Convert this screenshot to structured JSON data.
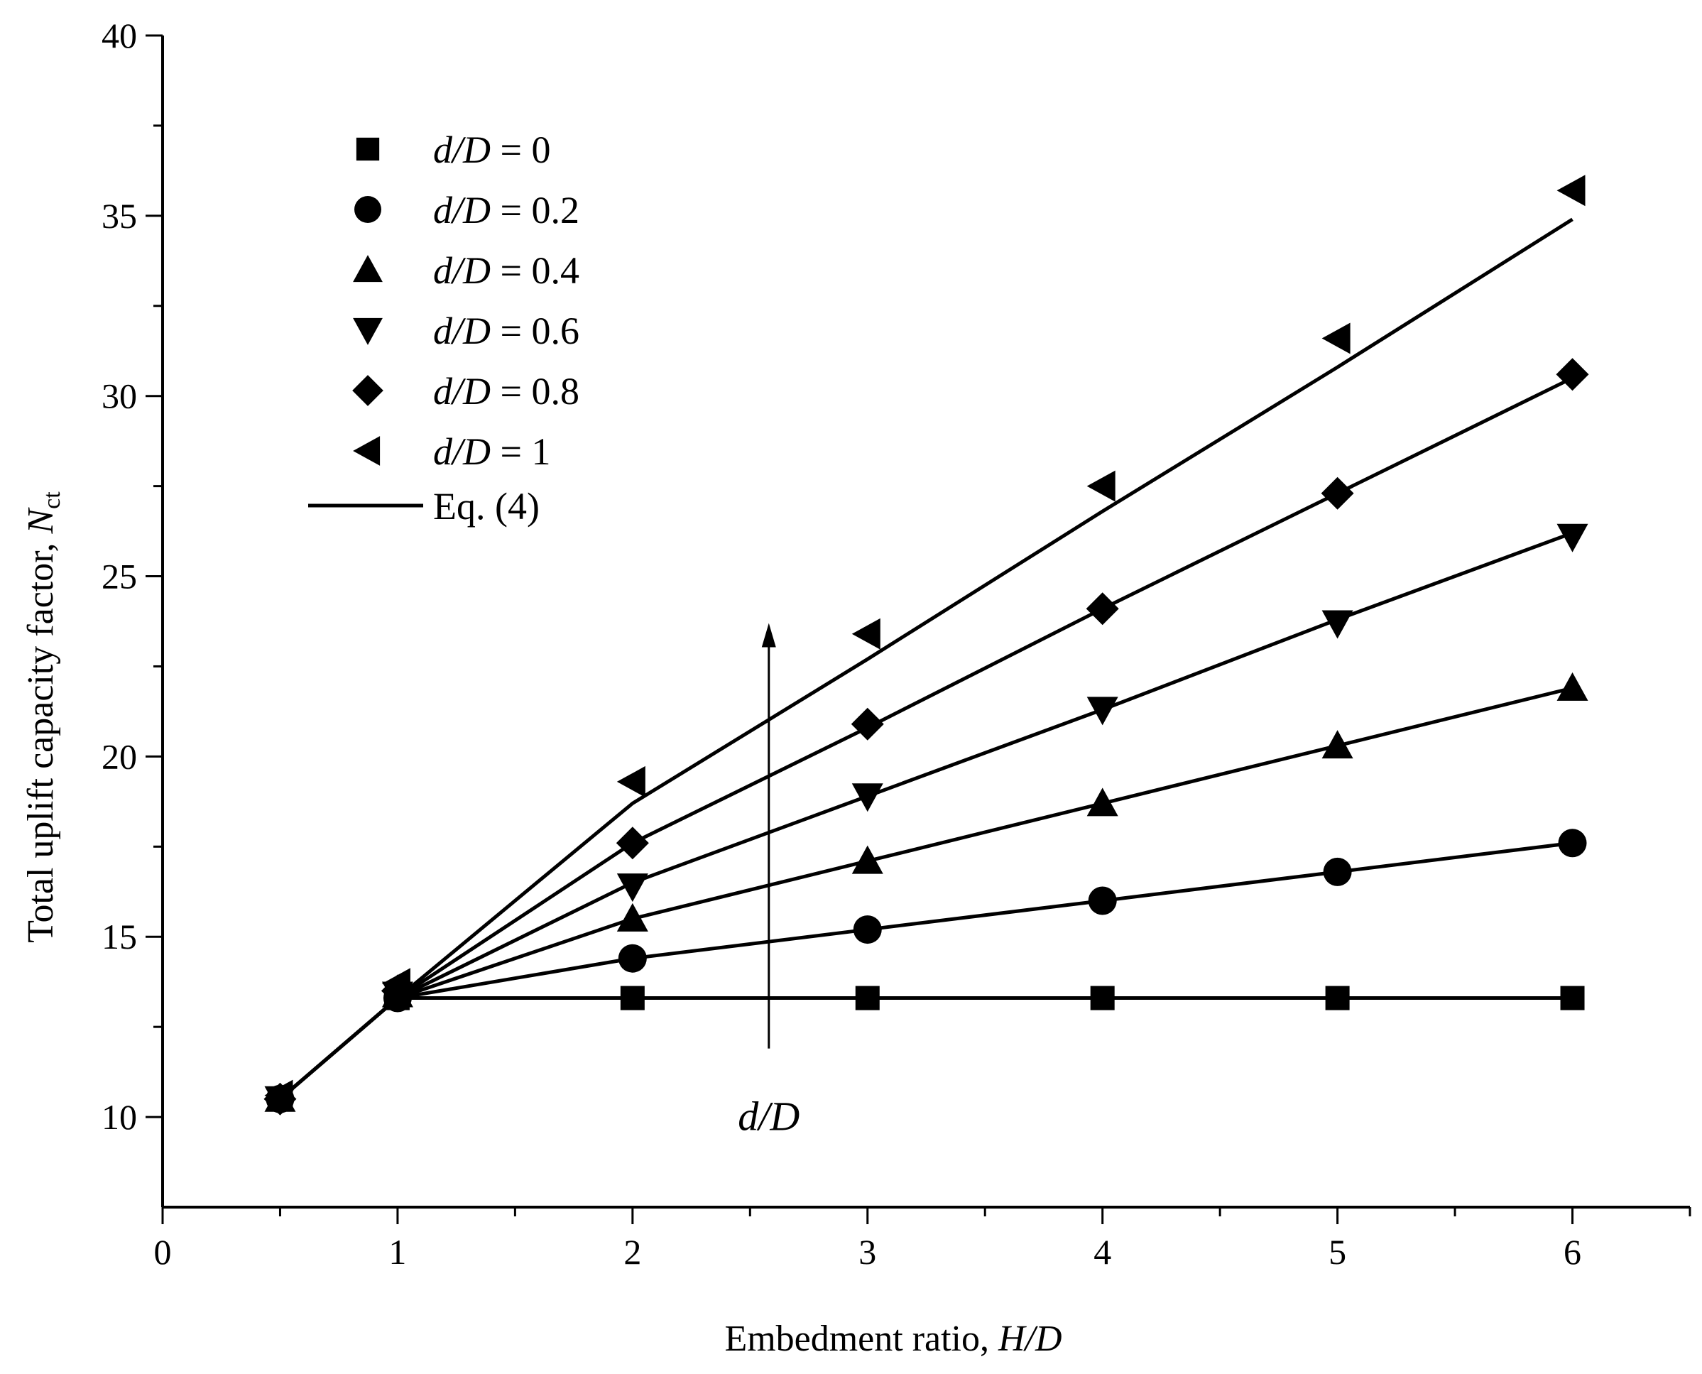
{
  "chart_data": {
    "type": "scatter",
    "xlabel": {
      "prefix": "Embedment ratio, ",
      "italic": "H/D"
    },
    "ylabel": {
      "prefix": "Total uplift capacity factor, ",
      "italic": "N",
      "sub": "ct"
    },
    "xlim": [
      0,
      6.5
    ],
    "ylim": [
      7.5,
      40
    ],
    "xticks": [
      "0",
      "1",
      "2",
      "3",
      "4",
      "5",
      "6"
    ],
    "yticks": [
      "10",
      "15",
      "20",
      "25",
      "30",
      "35",
      "40"
    ],
    "legend_position": "top-left",
    "series": [
      {
        "name": "= 0",
        "name_italic": "d/D",
        "marker": "square",
        "x": [
          0.5,
          1,
          2,
          3,
          4,
          5,
          6
        ],
        "y": [
          10.5,
          13.3,
          13.3,
          13.3,
          13.3,
          13.3,
          13.3
        ]
      },
      {
        "name": "= 0.2",
        "name_italic": "d/D",
        "marker": "circle",
        "x": [
          0.5,
          1,
          2,
          3,
          4,
          5,
          6
        ],
        "y": [
          10.5,
          13.3,
          14.4,
          15.2,
          16.0,
          16.8,
          17.6
        ]
      },
      {
        "name": "= 0.4",
        "name_italic": "d/D",
        "marker": "triangle-up",
        "x": [
          0.5,
          1,
          2,
          3,
          4,
          5,
          6
        ],
        "y": [
          10.5,
          13.4,
          15.5,
          17.1,
          18.7,
          20.3,
          21.9
        ]
      },
      {
        "name": "= 0.6",
        "name_italic": "d/D",
        "marker": "triangle-down",
        "x": [
          0.5,
          1,
          2,
          3,
          4,
          5,
          6
        ],
        "y": [
          10.5,
          13.4,
          16.4,
          18.9,
          21.3,
          23.7,
          26.1
        ]
      },
      {
        "name": "= 0.8",
        "name_italic": "d/D",
        "marker": "diamond",
        "x": [
          0.5,
          1,
          2,
          3,
          4,
          5,
          6
        ],
        "y": [
          10.5,
          13.5,
          17.6,
          20.9,
          24.1,
          27.3,
          30.6
        ]
      },
      {
        "name": "= 1",
        "name_italic": "d/D",
        "marker": "triangle-left",
        "x": [
          0.5,
          1,
          2,
          3,
          4,
          5,
          6
        ],
        "y": [
          10.6,
          13.7,
          19.3,
          23.4,
          27.5,
          31.6,
          35.7
        ]
      }
    ],
    "fit_lines": {
      "name": "Eq. (4)",
      "series": [
        {
          "x": [
            0.5,
            1,
            2,
            3,
            4,
            5,
            6
          ],
          "y": [
            10.5,
            13.3,
            13.3,
            13.3,
            13.3,
            13.3,
            13.3
          ]
        },
        {
          "x": [
            0.5,
            1,
            2,
            3,
            4,
            5,
            6
          ],
          "y": [
            10.5,
            13.3,
            14.4,
            15.2,
            16.0,
            16.8,
            17.6
          ]
        },
        {
          "x": [
            0.5,
            1,
            2,
            3,
            4,
            5,
            6
          ],
          "y": [
            10.5,
            13.3,
            15.5,
            17.1,
            18.7,
            20.3,
            21.9
          ]
        },
        {
          "x": [
            0.5,
            1,
            2,
            3,
            4,
            5,
            6
          ],
          "y": [
            10.5,
            13.3,
            16.5,
            18.9,
            21.3,
            23.8,
            26.2
          ]
        },
        {
          "x": [
            0.5,
            1,
            2,
            3,
            4,
            5,
            6
          ],
          "y": [
            10.5,
            13.3,
            17.6,
            20.8,
            24.1,
            27.3,
            30.5
          ]
        },
        {
          "x": [
            0.5,
            1,
            2,
            3,
            4,
            5,
            6
          ],
          "y": [
            10.5,
            13.3,
            18.7,
            22.7,
            26.8,
            30.8,
            34.9
          ]
        }
      ]
    },
    "annotation": {
      "text": "d/D",
      "arrow_x": 2.58,
      "arrow_y_from": 11.9,
      "arrow_y_to": 23.7
    }
  }
}
